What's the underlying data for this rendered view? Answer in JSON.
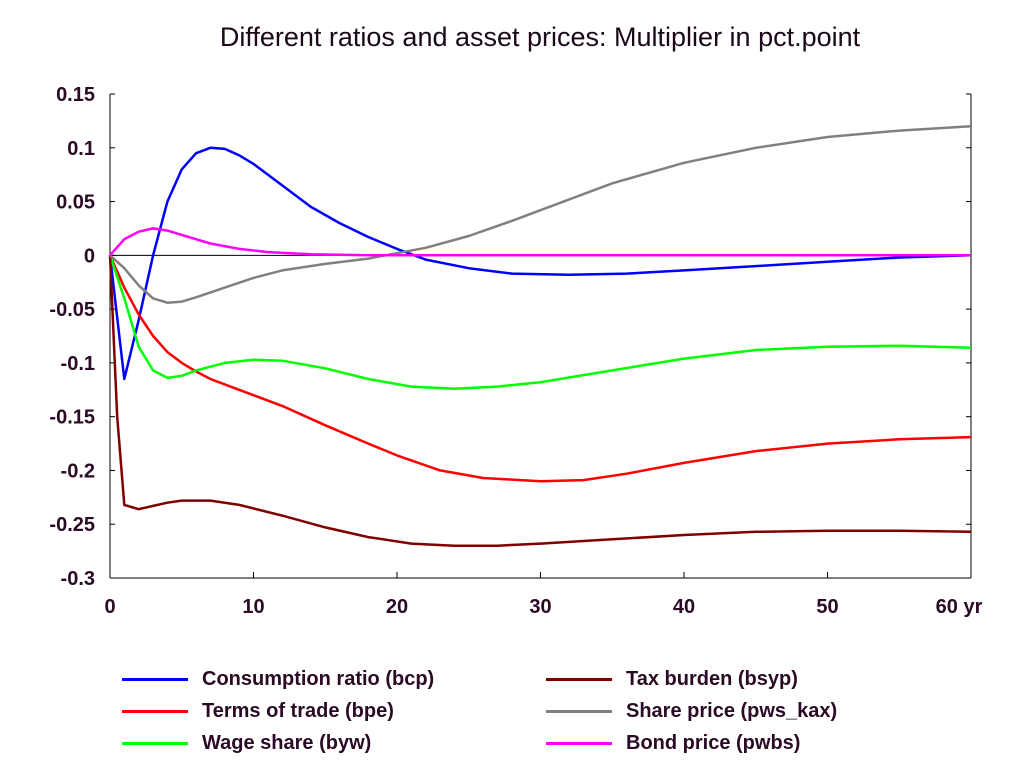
{
  "chart_data": {
    "type": "line",
    "title": "Different ratios and asset prices: Multiplier in pct.point",
    "xlabel": "",
    "ylabel": "",
    "x_unit_label": "yr",
    "xlim": [
      0,
      60
    ],
    "ylim": [
      -0.3,
      0.15
    ],
    "x_ticks": [
      0,
      10,
      20,
      30,
      40,
      50,
      60
    ],
    "x_tick_labels": [
      "0",
      "10",
      "20",
      "30",
      "40",
      "50",
      "60 yr"
    ],
    "y_ticks": [
      0.15,
      0.1,
      0.05,
      0,
      -0.05,
      -0.1,
      -0.15,
      -0.2,
      -0.25,
      -0.3
    ],
    "y_tick_labels": [
      "0.15",
      "0.1",
      "0.05",
      "0",
      "-0.05",
      "-0.1",
      "-0.15",
      "-0.2",
      "-0.25",
      "-0.3"
    ],
    "grid": false,
    "zero_line": true,
    "legend_position": "bottom",
    "series": [
      {
        "name": "Consumption ratio (bcp)",
        "color": "#0000ff",
        "points": [
          [
            0,
            0
          ],
          [
            1,
            -0.115
          ],
          [
            2,
            -0.06
          ],
          [
            3,
            0.0
          ],
          [
            4,
            0.05
          ],
          [
            5,
            0.08
          ],
          [
            6,
            0.095
          ],
          [
            7,
            0.1
          ],
          [
            8,
            0.099
          ],
          [
            9,
            0.093
          ],
          [
            10,
            0.085
          ],
          [
            12,
            0.065
          ],
          [
            14,
            0.045
          ],
          [
            16,
            0.03
          ],
          [
            18,
            0.017
          ],
          [
            20,
            0.006
          ],
          [
            22,
            -0.004
          ],
          [
            25,
            -0.012
          ],
          [
            28,
            -0.017
          ],
          [
            32,
            -0.018
          ],
          [
            36,
            -0.017
          ],
          [
            40,
            -0.014
          ],
          [
            45,
            -0.01
          ],
          [
            50,
            -0.006
          ],
          [
            55,
            -0.002
          ],
          [
            60,
            0.0
          ]
        ]
      },
      {
        "name": "Terms of trade (bpe)",
        "color": "#ff0000",
        "points": [
          [
            0,
            0
          ],
          [
            1,
            -0.03
          ],
          [
            2,
            -0.055
          ],
          [
            3,
            -0.075
          ],
          [
            4,
            -0.09
          ],
          [
            5,
            -0.1
          ],
          [
            6,
            -0.108
          ],
          [
            7,
            -0.115
          ],
          [
            8,
            -0.12
          ],
          [
            10,
            -0.13
          ],
          [
            12,
            -0.14
          ],
          [
            15,
            -0.158
          ],
          [
            18,
            -0.175
          ],
          [
            20,
            -0.186
          ],
          [
            23,
            -0.2
          ],
          [
            26,
            -0.207
          ],
          [
            30,
            -0.21
          ],
          [
            33,
            -0.209
          ],
          [
            36,
            -0.203
          ],
          [
            40,
            -0.193
          ],
          [
            45,
            -0.182
          ],
          [
            50,
            -0.175
          ],
          [
            55,
            -0.171
          ],
          [
            60,
            -0.169
          ]
        ]
      },
      {
        "name": "Wage share (byw)",
        "color": "#00ff00",
        "points": [
          [
            0,
            0
          ],
          [
            1,
            -0.04
          ],
          [
            2,
            -0.085
          ],
          [
            3,
            -0.107
          ],
          [
            4,
            -0.114
          ],
          [
            5,
            -0.112
          ],
          [
            6,
            -0.107
          ],
          [
            8,
            -0.1
          ],
          [
            10,
            -0.097
          ],
          [
            12,
            -0.098
          ],
          [
            15,
            -0.105
          ],
          [
            18,
            -0.115
          ],
          [
            21,
            -0.122
          ],
          [
            24,
            -0.124
          ],
          [
            27,
            -0.122
          ],
          [
            30,
            -0.118
          ],
          [
            35,
            -0.107
          ],
          [
            40,
            -0.096
          ],
          [
            45,
            -0.088
          ],
          [
            50,
            -0.085
          ],
          [
            55,
            -0.084
          ],
          [
            60,
            -0.086
          ]
        ]
      },
      {
        "name": "Tax burden (bsyp)",
        "color": "#800000",
        "points": [
          [
            0,
            0
          ],
          [
            0.5,
            -0.15
          ],
          [
            1,
            -0.232
          ],
          [
            2,
            -0.236
          ],
          [
            3,
            -0.233
          ],
          [
            4,
            -0.23
          ],
          [
            5,
            -0.228
          ],
          [
            7,
            -0.228
          ],
          [
            9,
            -0.232
          ],
          [
            12,
            -0.242
          ],
          [
            15,
            -0.253
          ],
          [
            18,
            -0.262
          ],
          [
            21,
            -0.268
          ],
          [
            24,
            -0.27
          ],
          [
            27,
            -0.27
          ],
          [
            30,
            -0.268
          ],
          [
            35,
            -0.264
          ],
          [
            40,
            -0.26
          ],
          [
            45,
            -0.257
          ],
          [
            50,
            -0.256
          ],
          [
            55,
            -0.256
          ],
          [
            60,
            -0.257
          ]
        ]
      },
      {
        "name": "Share price (pws_kax)",
        "color": "#808080",
        "points": [
          [
            0,
            0
          ],
          [
            1,
            -0.012
          ],
          [
            2,
            -0.028
          ],
          [
            3,
            -0.04
          ],
          [
            4,
            -0.044
          ],
          [
            5,
            -0.043
          ],
          [
            6,
            -0.039
          ],
          [
            8,
            -0.03
          ],
          [
            10,
            -0.021
          ],
          [
            12,
            -0.014
          ],
          [
            15,
            -0.008
          ],
          [
            18,
            -0.003
          ],
          [
            20,
            0.002
          ],
          [
            22,
            0.007
          ],
          [
            25,
            0.018
          ],
          [
            28,
            0.032
          ],
          [
            30,
            0.042
          ],
          [
            35,
            0.067
          ],
          [
            40,
            0.086
          ],
          [
            45,
            0.1
          ],
          [
            50,
            0.11
          ],
          [
            55,
            0.116
          ],
          [
            60,
            0.12
          ]
        ]
      },
      {
        "name": "Bond price (pwbs)",
        "color": "#ff00ff",
        "points": [
          [
            0,
            0
          ],
          [
            1,
            0.015
          ],
          [
            2,
            0.022
          ],
          [
            3,
            0.025
          ],
          [
            4,
            0.023
          ],
          [
            5,
            0.019
          ],
          [
            7,
            0.011
          ],
          [
            9,
            0.006
          ],
          [
            11,
            0.003
          ],
          [
            14,
            0.001
          ],
          [
            18,
            0.0
          ],
          [
            25,
            0.0
          ],
          [
            40,
            0.0
          ],
          [
            60,
            0.0
          ]
        ]
      }
    ]
  },
  "legend": {
    "items": [
      {
        "label": "Consumption ratio (bcp)",
        "color": "#0000ff"
      },
      {
        "label": "Terms of trade (bpe)",
        "color": "#ff0000"
      },
      {
        "label": "Wage share (byw)",
        "color": "#00ff00"
      },
      {
        "label": "Tax burden (bsyp)",
        "color": "#800000"
      },
      {
        "label": "Share price (pws_kax)",
        "color": "#808080"
      },
      {
        "label": "Bond price (pwbs)",
        "color": "#ff00ff"
      }
    ]
  }
}
